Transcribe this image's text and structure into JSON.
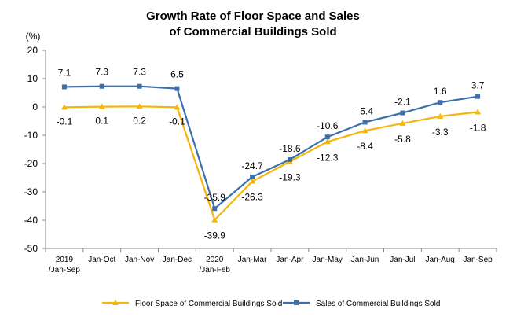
{
  "chart_data": {
    "type": "line",
    "title": "Growth Rate of Floor Space and Sales of Commercial Buildings Sold",
    "title_lines": [
      "Growth Rate of Floor Space and Sales",
      "of Commercial Buildings Sold"
    ],
    "ylabel": "(%)",
    "ylim": [
      -50,
      20
    ],
    "yticks": [
      20,
      10,
      0,
      -10,
      -20,
      -30,
      -40,
      -50
    ],
    "grid": false,
    "legend_position": "bottom",
    "categories": [
      [
        "2019",
        "/Jan-Sep"
      ],
      [
        "Jan-Oct"
      ],
      [
        "Jan-Nov"
      ],
      [
        "Jan-Dec"
      ],
      [
        "2020",
        "/Jan-Feb"
      ],
      [
        "Jan-Mar"
      ],
      [
        "Jan-Apr"
      ],
      [
        "Jan-May"
      ],
      [
        "Jan-Jun"
      ],
      [
        "Jan-Jul"
      ],
      [
        "Jan-Aug"
      ],
      [
        "Jan-Sep"
      ]
    ],
    "series": [
      {
        "name": "Floor Space of Commercial Buildings Sold",
        "color": "#F5B50A",
        "marker": "triangle",
        "values": [
          -0.1,
          0.1,
          0.2,
          -0.1,
          -39.9,
          -26.3,
          -19.3,
          -12.3,
          -8.4,
          -5.8,
          -3.3,
          -1.8
        ],
        "labels": [
          "-0.1",
          "0.1",
          "0.2",
          "-0.1",
          "-39.9",
          "-26.3",
          "-19.3",
          "-12.3",
          "-8.4",
          "-5.8",
          "-3.3",
          "-1.8"
        ]
      },
      {
        "name": "Sales of Commercial Buildings Sold",
        "color": "#3D6FAA",
        "marker": "square",
        "values": [
          7.1,
          7.3,
          7.3,
          6.5,
          -35.9,
          -24.7,
          -18.6,
          -10.6,
          -5.4,
          -2.1,
          1.6,
          3.7
        ],
        "labels": [
          "7.1",
          "7.3",
          "7.3",
          "6.5",
          "-35.9",
          "-24.7",
          "-18.6",
          "-10.6",
          "-5.4",
          "-2.1",
          "1.6",
          "3.7"
        ]
      }
    ]
  }
}
